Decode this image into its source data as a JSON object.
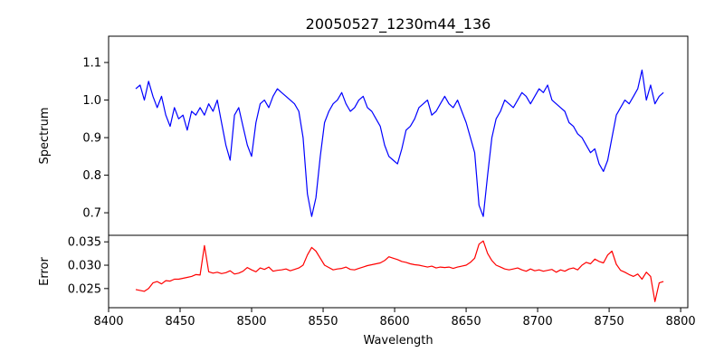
{
  "chart_data": {
    "type": "line",
    "title": "20050527_1230m44_136",
    "xlabel": "Wavelength",
    "xlim": [
      8400,
      8805
    ],
    "x_ticks": [
      "8400",
      "8450",
      "8500",
      "8550",
      "8600",
      "8650",
      "8700",
      "8750",
      "8800"
    ],
    "panels": [
      {
        "ylabel": "Spectrum",
        "ylim": [
          0.64,
          1.17
        ],
        "y_ticks": [
          "0.7",
          "0.8",
          "0.9",
          "1.0",
          "1.1"
        ],
        "series": [
          {
            "color": "#0000ff",
            "x": [
              8419,
              8422,
              8425,
              8428,
              8431,
              8434,
              8437,
              8440,
              8443,
              8446,
              8449,
              8452,
              8455,
              8458,
              8461,
              8464,
              8467,
              8470,
              8473,
              8476,
              8479,
              8482,
              8485,
              8488,
              8491,
              8494,
              8497,
              8500,
              8503,
              8506,
              8509,
              8512,
              8515,
              8518,
              8521,
              8524,
              8527,
              8530,
              8533,
              8536,
              8539,
              8542,
              8545,
              8548,
              8551,
              8554,
              8557,
              8560,
              8563,
              8566,
              8569,
              8572,
              8575,
              8578,
              8581,
              8584,
              8587,
              8590,
              8593,
              8596,
              8599,
              8602,
              8605,
              8608,
              8611,
              8614,
              8617,
              8620,
              8623,
              8626,
              8629,
              8632,
              8635,
              8638,
              8641,
              8644,
              8647,
              8650,
              8653,
              8656,
              8659,
              8662,
              8665,
              8668,
              8671,
              8674,
              8677,
              8680,
              8683,
              8686,
              8689,
              8692,
              8695,
              8698,
              8701,
              8704,
              8707,
              8710,
              8713,
              8716,
              8719,
              8722,
              8725,
              8728,
              8731,
              8734,
              8737,
              8740,
              8743,
              8746,
              8749,
              8752,
              8755,
              8758,
              8761,
              8764,
              8767,
              8770,
              8773,
              8776,
              8779,
              8782,
              8785,
              8788
            ],
            "y": [
              1.03,
              1.04,
              1.0,
              1.05,
              1.01,
              0.98,
              1.01,
              0.96,
              0.93,
              0.98,
              0.95,
              0.96,
              0.92,
              0.97,
              0.96,
              0.98,
              0.96,
              0.99,
              0.97,
              1.0,
              0.94,
              0.88,
              0.84,
              0.96,
              0.98,
              0.93,
              0.88,
              0.85,
              0.94,
              0.99,
              1.0,
              0.98,
              1.01,
              1.03,
              1.02,
              1.01,
              1.0,
              0.99,
              0.97,
              0.9,
              0.75,
              0.69,
              0.74,
              0.85,
              0.94,
              0.97,
              0.99,
              1.0,
              1.02,
              0.99,
              0.97,
              0.98,
              1.0,
              1.01,
              0.98,
              0.97,
              0.95,
              0.93,
              0.88,
              0.85,
              0.84,
              0.83,
              0.87,
              0.92,
              0.93,
              0.95,
              0.98,
              0.99,
              1.0,
              0.96,
              0.97,
              0.99,
              1.01,
              0.99,
              0.98,
              1.0,
              0.97,
              0.94,
              0.9,
              0.86,
              0.72,
              0.69,
              0.8,
              0.9,
              0.95,
              0.97,
              1.0,
              0.99,
              0.98,
              1.0,
              1.02,
              1.01,
              0.99,
              1.01,
              1.03,
              1.02,
              1.04,
              1.0,
              0.99,
              0.98,
              0.97,
              0.94,
              0.93,
              0.91,
              0.9,
              0.88,
              0.86,
              0.87,
              0.83,
              0.81,
              0.84,
              0.9,
              0.96,
              0.98,
              1.0,
              0.99,
              1.01,
              1.03,
              1.08,
              1.0,
              1.04,
              0.99,
              1.01,
              1.02
            ]
          }
        ]
      },
      {
        "ylabel": "Error",
        "ylim": [
          0.0209,
          0.0364
        ],
        "y_ticks": [
          "0.025",
          "0.030",
          "0.035"
        ],
        "series": [
          {
            "color": "#ff0000",
            "x": [
              8419,
              8422,
              8425,
              8428,
              8431,
              8434,
              8437,
              8440,
              8443,
              8446,
              8449,
              8452,
              8455,
              8458,
              8461,
              8464,
              8467,
              8470,
              8473,
              8476,
              8479,
              8482,
              8485,
              8488,
              8491,
              8494,
              8497,
              8500,
              8503,
              8506,
              8509,
              8512,
              8515,
              8518,
              8521,
              8524,
              8527,
              8530,
              8533,
              8536,
              8539,
              8542,
              8545,
              8548,
              8551,
              8554,
              8557,
              8560,
              8563,
              8566,
              8569,
              8572,
              8575,
              8578,
              8581,
              8584,
              8587,
              8590,
              8593,
              8596,
              8599,
              8602,
              8605,
              8608,
              8611,
              8614,
              8617,
              8620,
              8623,
              8626,
              8629,
              8632,
              8635,
              8638,
              8641,
              8644,
              8647,
              8650,
              8653,
              8656,
              8659,
              8662,
              8665,
              8668,
              8671,
              8674,
              8677,
              8680,
              8683,
              8686,
              8689,
              8692,
              8695,
              8698,
              8701,
              8704,
              8707,
              8710,
              8713,
              8716,
              8719,
              8722,
              8725,
              8728,
              8731,
              8734,
              8737,
              8740,
              8743,
              8746,
              8749,
              8752,
              8755,
              8758,
              8761,
              8764,
              8767,
              8770,
              8773,
              8776,
              8779,
              8782,
              8785,
              8788
            ],
            "y": [
              0.0248,
              0.0246,
              0.0244,
              0.025,
              0.0262,
              0.0265,
              0.026,
              0.0267,
              0.0266,
              0.027,
              0.027,
              0.0272,
              0.0274,
              0.0276,
              0.028,
              0.0279,
              0.0342,
              0.0286,
              0.0283,
              0.0285,
              0.0282,
              0.0284,
              0.0288,
              0.0281,
              0.0283,
              0.0287,
              0.0295,
              0.029,
              0.0286,
              0.0294,
              0.0291,
              0.0296,
              0.0287,
              0.0289,
              0.029,
              0.0292,
              0.0288,
              0.0291,
              0.0294,
              0.03,
              0.0322,
              0.0338,
              0.033,
              0.0315,
              0.03,
              0.0295,
              0.029,
              0.0292,
              0.0293,
              0.0296,
              0.0291,
              0.029,
              0.0293,
              0.0296,
              0.0299,
              0.0301,
              0.0303,
              0.0305,
              0.031,
              0.0318,
              0.0315,
              0.0312,
              0.0308,
              0.0306,
              0.0303,
              0.0301,
              0.03,
              0.0298,
              0.0296,
              0.0298,
              0.0294,
              0.0296,
              0.0295,
              0.0296,
              0.0293,
              0.0296,
              0.0298,
              0.03,
              0.0306,
              0.0315,
              0.0345,
              0.0352,
              0.0325,
              0.031,
              0.03,
              0.0296,
              0.0292,
              0.029,
              0.0292,
              0.0294,
              0.029,
              0.0287,
              0.0292,
              0.0288,
              0.029,
              0.0287,
              0.0289,
              0.0291,
              0.0285,
              0.029,
              0.0287,
              0.0292,
              0.0294,
              0.029,
              0.03,
              0.0306,
              0.0303,
              0.0313,
              0.0308,
              0.0305,
              0.0322,
              0.033,
              0.0302,
              0.0289,
              0.0285,
              0.028,
              0.0276,
              0.0281,
              0.027,
              0.0285,
              0.0276,
              0.0222,
              0.0262,
              0.0265
            ]
          }
        ]
      }
    ]
  }
}
